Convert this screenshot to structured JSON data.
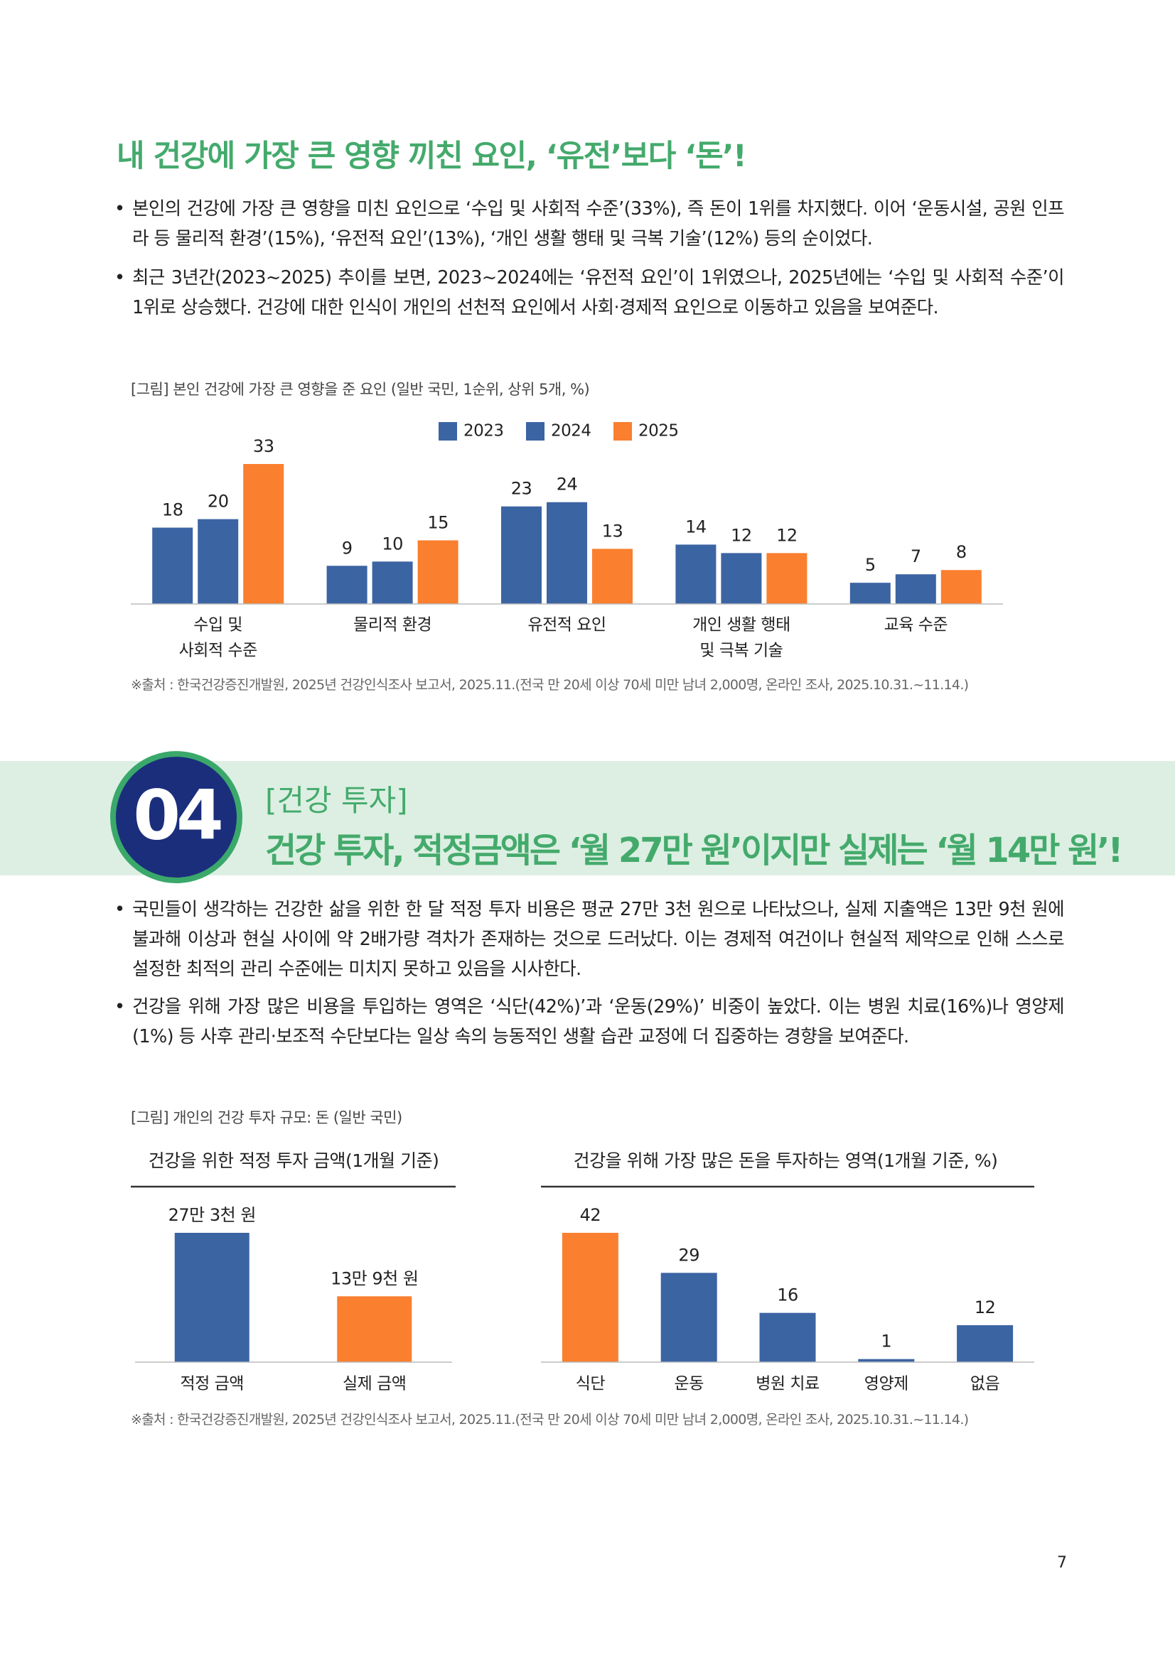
{
  "section1": {
    "title": "내 건강에 가장 큰 영향 끼친 요인, ‘유전’보다 ‘돈’!",
    "bullets": [
      "본인의 건강에 가장 큰 영향을 미친 요인으로 ‘수입 및 사회적 수준’(33%), 즉 돈이 1위를 차지했다. 이어 ‘운동시설, 공원 인프라 등 물리적 환경’(15%), ‘유전적 요인’(13%), ‘개인 생활 행태 및 극복 기술’(12%) 등의 순이었다.",
      "최근 3년간(2023~2025) 추이를 보면, 2023~2024에는 ‘유전적 요인’이 1위였으나, 2025년에는 ‘수입 및 사회적 수준’이 1위로 상승했다. 건강에 대한 인식이 개인의 선천적 요인에서 사회·경제적 요인으로 이동하고 있음을 보여준다."
    ],
    "caption": "[그림] 본인 건강에 가장 큰 영향을 준 요인 (일반 국민, 1순위, 상위 5개, %)",
    "source": "※출처 : 한국건강증진개발원, 2025년 건강인식조사 보고서, 2025.11.(전국 만 20세 이상 70세 미만 남녀 2,000명, 온라인 조사, 2025.10.31.~11.14.)"
  },
  "section2": {
    "number": "04",
    "label": "[건강 투자]",
    "title": "건강 투자, 적정금액은 ‘월 27만 원’이지만 실제는 ‘월 14만 원’!",
    "bullets": [
      "국민들이 생각하는 건강한 삶을 위한 한 달 적정 투자 비용은 평균 27만 3천 원으로 나타났으나, 실제 지출액은 13만 9천 원에 불과해 이상과 현실 사이에 약 2배가량 격차가 존재하는 것으로 드러났다. 이는 경제적 여건이나 현실적 제약으로 인해 스스로 설정한 최적의 관리 수준에는 미치지 못하고 있음을 시사한다.",
      "건강을 위해 가장 많은 비용을 투입하는 영역은 ‘식단(42%)’과 ‘운동(29%)’ 비중이 높았다. 이는 병원 치료(16%)나 영양제(1%) 등 사후 관리·보조적 수단보다는 일상 속의 능동적인 생활 습관 교정에 더 집중하는 경향을 보여준다."
    ],
    "caption": "[그림] 개인의 건강 투자 규모: 돈 (일반 국민)",
    "source": "※출처 : 한국건강증진개발원, 2025년 건강인식조사 보고서, 2025.11.(전국 만 20세 이상 70세 미만 남녀 2,000명, 온라인 조사, 2025.10.31.~11.14.)"
  },
  "chart_data": [
    {
      "type": "bar",
      "categories": [
        [
          "수입 및",
          "사회적 수준"
        ],
        [
          "물리적 환경"
        ],
        [
          "유전적 요인"
        ],
        [
          "개인 생활 행태",
          "및 극복 기술"
        ],
        [
          "교육 수준"
        ]
      ],
      "series": [
        {
          "name": "2023",
          "color": "#3b64a3",
          "values": [
            18,
            9,
            23,
            14,
            5
          ]
        },
        {
          "name": "2024",
          "color": "#3b64a3",
          "values": [
            20,
            10,
            24,
            12,
            7
          ]
        },
        {
          "name": "2025",
          "color": "#fa7f2f",
          "values": [
            33,
            15,
            13,
            12,
            8
          ]
        }
      ],
      "legend": "top"
    },
    {
      "type": "bar",
      "title": "건강을 위한 적정 투자 금액(1개월 기준)",
      "categories": [
        [
          "적정 금액"
        ],
        [
          "실제 금액"
        ]
      ],
      "values": [
        273000,
        139000
      ],
      "value_labels": [
        "27만 3천 원",
        "13만 9천 원"
      ],
      "colors": [
        "#3b64a3",
        "#fa7f2f"
      ]
    },
    {
      "type": "bar",
      "title": "건강을 위해 가장 많은 돈을 투자하는 영역(1개월 기준, %)",
      "categories": [
        [
          "식단"
        ],
        [
          "운동"
        ],
        [
          "병원 치료"
        ],
        [
          "영양제"
        ],
        [
          "없음"
        ]
      ],
      "values": [
        42,
        29,
        16,
        1,
        12
      ],
      "colors": [
        "#fa7f2f",
        "#3b64a3",
        "#3b64a3",
        "#3b64a3",
        "#3b64a3"
      ]
    }
  ],
  "page_number": "7"
}
